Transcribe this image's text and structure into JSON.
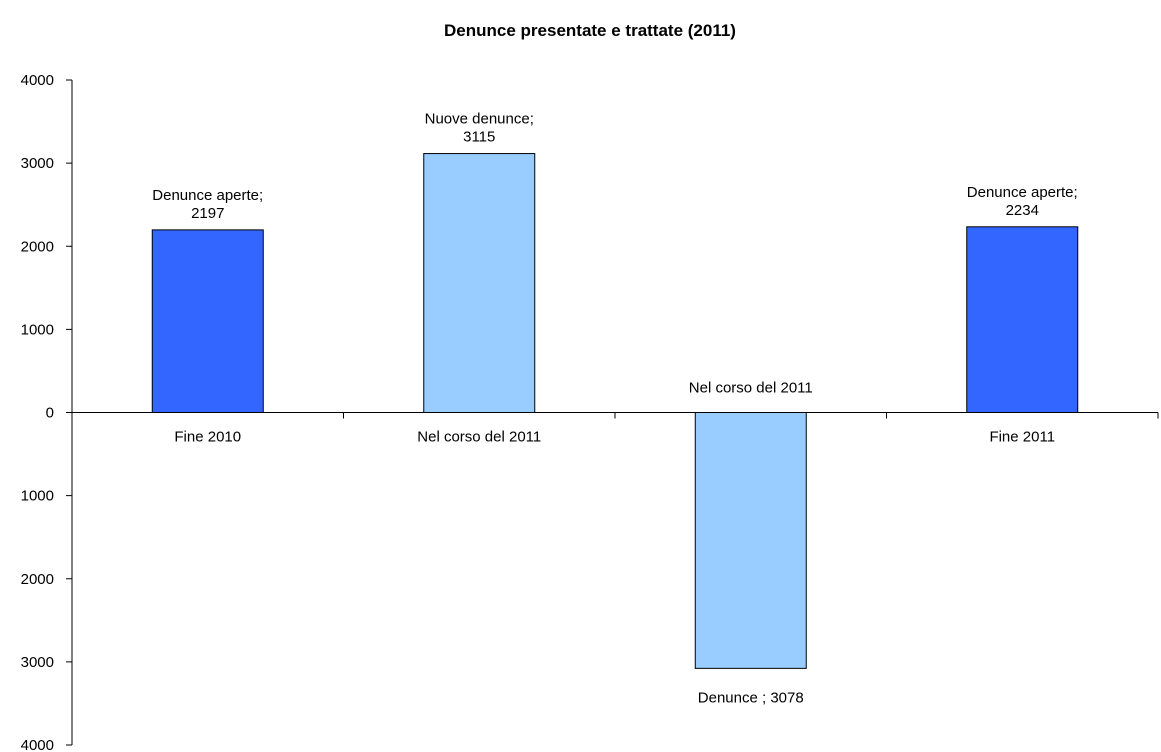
{
  "chart_data": {
    "type": "bar",
    "title": "Denunce presentate e trattate (2011)",
    "xlabel": "",
    "ylabel": "",
    "ylim": [
      -4000,
      4000
    ],
    "y_ticks": [
      4000,
      3000,
      2000,
      1000,
      0,
      -1000,
      -2000,
      -3000,
      -4000
    ],
    "y_tick_labels": [
      "4000",
      "3000",
      "2000",
      "1000",
      "0",
      "1000",
      "2000",
      "3000",
      "4000"
    ],
    "grid": false,
    "legend": "none",
    "categories": [
      "Fine 2010",
      "Nel corso del 2011",
      "Nel corso del 2011",
      "Fine 2011"
    ],
    "values": [
      2197,
      3115,
      -3078,
      2234
    ],
    "bar_colors": [
      "#3366ff",
      "#99ccff",
      "#99ccff",
      "#3366ff"
    ],
    "data_labels": [
      [
        "Denunce aperte;",
        "2197"
      ],
      [
        "Nuove denunce;",
        "3115"
      ],
      [
        "Denunce ; 3078"
      ],
      [
        "Denunce aperte;",
        "2234"
      ]
    ]
  }
}
